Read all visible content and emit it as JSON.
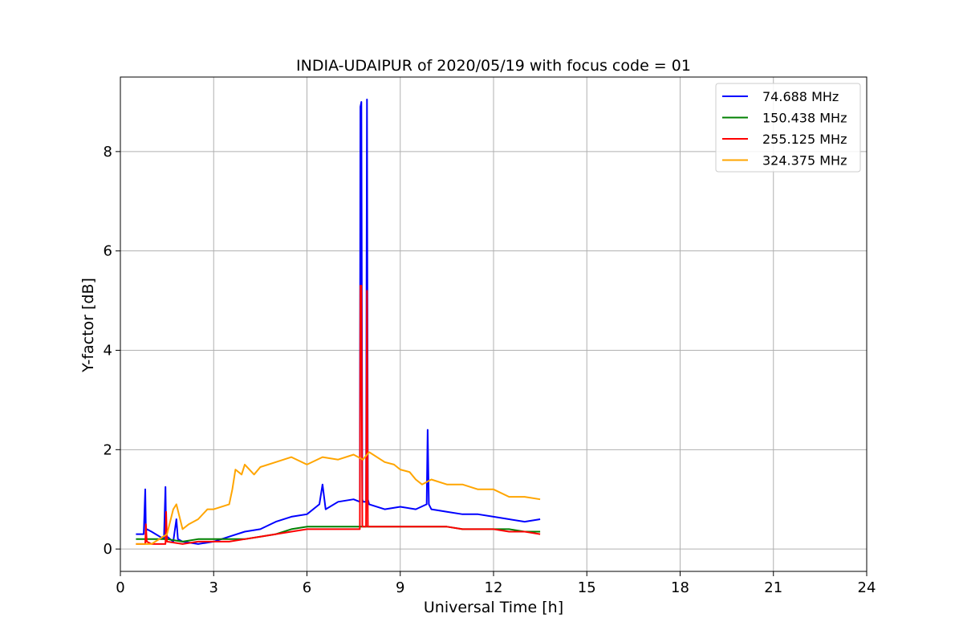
{
  "chart_data": {
    "type": "line",
    "title": "INDIA-UDAIPUR of 2020/05/19 with focus code = 01",
    "xlabel": "Universal Time [h]",
    "ylabel": "Y-factor [dB]",
    "xlim": [
      0,
      24
    ],
    "ylim": [
      -0.45,
      9.5
    ],
    "xticks": [
      0,
      3,
      6,
      9,
      12,
      15,
      18,
      21,
      24
    ],
    "yticks": [
      0,
      2,
      4,
      6,
      8
    ],
    "grid": true,
    "legend_position": "top-right",
    "series": [
      {
        "name": " 74.688 MHz",
        "color": "#0000ff",
        "x": [
          0.5,
          0.75,
          0.8,
          0.82,
          0.85,
          1.0,
          1.4,
          1.45,
          1.47,
          1.5,
          1.7,
          1.8,
          1.85,
          2.0,
          2.5,
          3.0,
          3.5,
          4.0,
          4.5,
          5.0,
          5.5,
          6.0,
          6.4,
          6.5,
          6.6,
          7.0,
          7.5,
          7.7,
          7.72,
          7.75,
          7.78,
          7.8,
          7.9,
          7.93,
          7.96,
          8.0,
          8.5,
          9.0,
          9.5,
          9.85,
          9.88,
          9.92,
          10.0,
          10.5,
          11.0,
          11.5,
          12.0,
          12.5,
          13.0,
          13.5
        ],
        "y": [
          0.3,
          0.3,
          1.2,
          0.35,
          0.4,
          0.35,
          0.2,
          1.25,
          0.3,
          0.25,
          0.15,
          0.6,
          0.2,
          0.15,
          0.1,
          0.15,
          0.25,
          0.35,
          0.4,
          0.55,
          0.65,
          0.7,
          0.9,
          1.3,
          0.8,
          0.95,
          1.0,
          0.95,
          8.9,
          9.0,
          1.0,
          0.95,
          0.95,
          9.05,
          1.0,
          0.9,
          0.8,
          0.85,
          0.8,
          0.9,
          2.4,
          0.9,
          0.8,
          0.75,
          0.7,
          0.7,
          0.65,
          0.6,
          0.55,
          0.6
        ]
      },
      {
        "name": "150.438 MHz",
        "color": "#008000",
        "x": [
          0.5,
          1.0,
          1.5,
          2.0,
          2.5,
          3.0,
          3.5,
          4.0,
          4.5,
          5.0,
          5.5,
          6.0,
          6.5,
          7.0,
          7.5,
          8.0,
          8.5,
          9.0,
          9.5,
          10.0,
          10.5,
          11.0,
          11.5,
          12.0,
          12.5,
          13.0,
          13.5
        ],
        "y": [
          0.2,
          0.2,
          0.2,
          0.15,
          0.2,
          0.2,
          0.2,
          0.2,
          0.25,
          0.3,
          0.4,
          0.45,
          0.45,
          0.45,
          0.45,
          0.45,
          0.45,
          0.45,
          0.45,
          0.45,
          0.45,
          0.4,
          0.4,
          0.4,
          0.4,
          0.35,
          0.35
        ]
      },
      {
        "name": "255.125 MHz",
        "color": "#ff0000",
        "x": [
          0.5,
          0.8,
          0.82,
          0.85,
          1.0,
          1.45,
          1.47,
          1.5,
          2.0,
          2.5,
          3.0,
          3.5,
          4.0,
          4.5,
          5.0,
          5.5,
          6.0,
          6.5,
          7.0,
          7.5,
          7.7,
          7.72,
          7.75,
          7.78,
          7.8,
          7.9,
          7.93,
          7.96,
          8.0,
          8.5,
          9.0,
          9.5,
          10.0,
          10.5,
          11.0,
          11.5,
          12.0,
          12.5,
          13.0,
          13.5
        ],
        "y": [
          0.1,
          0.1,
          0.5,
          0.15,
          0.1,
          0.1,
          0.75,
          0.15,
          0.1,
          0.15,
          0.15,
          0.15,
          0.2,
          0.25,
          0.3,
          0.35,
          0.4,
          0.4,
          0.4,
          0.4,
          0.4,
          5.3,
          5.3,
          0.45,
          0.45,
          0.45,
          5.2,
          0.45,
          0.45,
          0.45,
          0.45,
          0.45,
          0.45,
          0.45,
          0.4,
          0.4,
          0.4,
          0.35,
          0.35,
          0.3
        ]
      },
      {
        "name": "324.375 MHz",
        "color": "#ffa500",
        "x": [
          0.5,
          1.0,
          1.5,
          1.7,
          1.8,
          2.0,
          2.2,
          2.5,
          2.8,
          3.0,
          3.5,
          3.6,
          3.7,
          3.9,
          4.0,
          4.3,
          4.5,
          5.0,
          5.5,
          6.0,
          6.5,
          7.0,
          7.5,
          7.8,
          8.0,
          8.5,
          8.8,
          9.0,
          9.3,
          9.5,
          9.7,
          10.0,
          10.5,
          11.0,
          11.5,
          12.0,
          12.5,
          13.0,
          13.5
        ],
        "y": [
          0.1,
          0.1,
          0.3,
          0.8,
          0.9,
          0.4,
          0.5,
          0.6,
          0.8,
          0.8,
          0.9,
          1.2,
          1.6,
          1.5,
          1.7,
          1.5,
          1.65,
          1.75,
          1.85,
          1.7,
          1.85,
          1.8,
          1.9,
          1.8,
          1.95,
          1.75,
          1.7,
          1.6,
          1.55,
          1.4,
          1.3,
          1.4,
          1.3,
          1.3,
          1.2,
          1.2,
          1.05,
          1.05,
          1.0
        ]
      }
    ]
  }
}
